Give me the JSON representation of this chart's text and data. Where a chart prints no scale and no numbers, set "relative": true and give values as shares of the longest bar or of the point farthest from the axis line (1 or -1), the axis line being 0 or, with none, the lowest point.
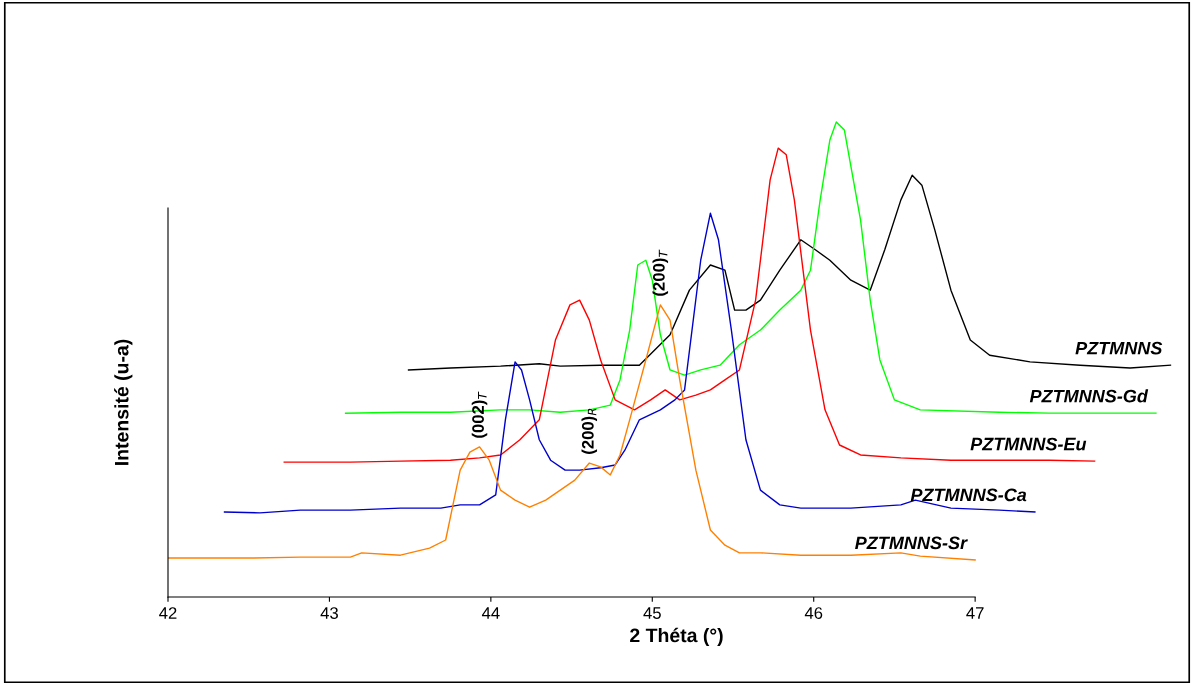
{
  "chart_data": {
    "type": "line",
    "relative": true,
    "xlabel": "2 Théta (°)",
    "ylabel": "Intensité (u-a)",
    "xlim": [
      42,
      48.3
    ],
    "xticks": [
      42,
      43,
      44,
      45,
      46,
      47
    ],
    "grid": false,
    "marker": "none",
    "line_style": "solid",
    "series": [
      {
        "name": "PZTMNNS",
        "color": "#000000",
        "x": [
          43.49,
          43.75,
          44.06,
          44.3,
          44.43,
          44.68,
          44.92,
          45.11,
          45.23,
          45.36,
          45.45,
          45.51,
          45.58,
          45.67,
          45.79,
          45.92,
          46.01,
          46.1,
          46.23,
          46.35,
          46.44,
          46.54,
          46.61,
          46.67,
          46.75,
          46.85,
          46.97,
          47.09,
          47.34,
          47.65,
          47.96,
          48.21
        ],
        "values": [
          0.478,
          0.482,
          0.486,
          0.491,
          0.486,
          0.488,
          0.488,
          0.552,
          0.646,
          0.699,
          0.688,
          0.604,
          0.604,
          0.625,
          0.688,
          0.752,
          0.731,
          0.709,
          0.667,
          0.646,
          0.731,
          0.836,
          0.888,
          0.867,
          0.773,
          0.646,
          0.541,
          0.509,
          0.495,
          0.488,
          0.482,
          0.488
        ]
      },
      {
        "name": "PZTMNNS-Gd",
        "color": "#00ff00",
        "x": [
          43.1,
          43.44,
          43.75,
          44.06,
          44.24,
          44.43,
          44.61,
          44.74,
          44.8,
          44.86,
          44.91,
          44.96,
          45.0,
          45.05,
          45.11,
          45.2,
          45.3,
          45.42,
          45.54,
          45.67,
          45.79,
          45.92,
          45.98,
          46.04,
          46.1,
          46.14,
          46.19,
          46.29,
          46.35,
          46.41,
          46.5,
          46.66,
          47.15,
          47.46,
          47.77,
          48.12
        ],
        "values": [
          0.387,
          0.389,
          0.389,
          0.394,
          0.394,
          0.389,
          0.394,
          0.404,
          0.457,
          0.562,
          0.699,
          0.709,
          0.667,
          0.552,
          0.478,
          0.467,
          0.478,
          0.488,
          0.531,
          0.562,
          0.604,
          0.646,
          0.688,
          0.836,
          0.962,
          1,
          0.983,
          0.794,
          0.625,
          0.499,
          0.415,
          0.394,
          0.389,
          0.387,
          0.387,
          0.387
        ]
      },
      {
        "name": "PZTMNNS-Eu",
        "color": "#ff0000",
        "x": [
          42.72,
          43.13,
          43.44,
          43.75,
          43.93,
          44.06,
          44.18,
          44.3,
          44.4,
          44.49,
          44.55,
          44.61,
          44.68,
          44.77,
          44.89,
          44.99,
          45.08,
          45.17,
          45.27,
          45.36,
          45.45,
          45.54,
          45.64,
          45.73,
          45.78,
          45.83,
          45.88,
          45.98,
          46.07,
          46.16,
          46.29,
          46.54,
          46.85,
          47.15,
          47.46,
          47.74
        ],
        "values": [
          0.284,
          0.284,
          0.286,
          0.288,
          0.293,
          0.299,
          0.331,
          0.373,
          0.541,
          0.615,
          0.625,
          0.583,
          0.499,
          0.415,
          0.394,
          0.415,
          0.436,
          0.415,
          0.425,
          0.436,
          0.457,
          0.478,
          0.625,
          0.878,
          0.945,
          0.931,
          0.836,
          0.562,
          0.394,
          0.32,
          0.299,
          0.293,
          0.288,
          0.288,
          0.288,
          0.286
        ]
      },
      {
        "name": "PZTMNNS-Ca",
        "color": "#0000cc",
        "x": [
          42.35,
          42.57,
          42.82,
          43.13,
          43.44,
          43.69,
          43.81,
          43.93,
          44.03,
          44.09,
          44.15,
          44.19,
          44.24,
          44.3,
          44.37,
          44.46,
          44.55,
          44.68,
          44.77,
          44.83,
          44.92,
          45.05,
          45.14,
          45.2,
          45.3,
          45.36,
          45.41,
          45.49,
          45.58,
          45.67,
          45.79,
          45.92,
          46.23,
          46.54,
          46.63,
          46.85,
          47.15,
          47.37
        ],
        "values": [
          0.179,
          0.177,
          0.183,
          0.183,
          0.187,
          0.187,
          0.194,
          0.194,
          0.215,
          0.373,
          0.495,
          0.478,
          0.415,
          0.331,
          0.288,
          0.267,
          0.267,
          0.272,
          0.278,
          0.309,
          0.373,
          0.394,
          0.415,
          0.436,
          0.709,
          0.808,
          0.752,
          0.562,
          0.331,
          0.225,
          0.194,
          0.187,
          0.187,
          0.194,
          0.204,
          0.187,
          0.183,
          0.179
        ]
      },
      {
        "name": "PZTMNNS-Sr",
        "color": "#ff8000",
        "x": [
          42.0,
          42.51,
          42.82,
          43.13,
          43.2,
          43.44,
          43.62,
          43.72,
          43.81,
          43.87,
          43.93,
          43.99,
          44.06,
          44.15,
          44.24,
          44.34,
          44.43,
          44.52,
          44.61,
          44.68,
          44.74,
          44.8,
          44.86,
          44.96,
          45.05,
          45.11,
          45.17,
          45.27,
          45.36,
          45.45,
          45.54,
          45.67,
          45.92,
          46.23,
          46.54,
          46.66,
          47.0
        ],
        "values": [
          0.082,
          0.082,
          0.084,
          0.084,
          0.093,
          0.088,
          0.103,
          0.12,
          0.267,
          0.305,
          0.316,
          0.288,
          0.225,
          0.204,
          0.189,
          0.204,
          0.225,
          0.246,
          0.282,
          0.274,
          0.257,
          0.299,
          0.373,
          0.499,
          0.615,
          0.583,
          0.457,
          0.267,
          0.141,
          0.109,
          0.093,
          0.093,
          0.088,
          0.088,
          0.093,
          0.086,
          0.078
        ]
      }
    ],
    "annotations": [
      {
        "text": "(002)$_{T}$",
        "x": 43.93,
        "y": 0.316
      },
      {
        "text": "(200)$_{R}$",
        "x": 44.61,
        "y": 0.282
      },
      {
        "text": "(200)$_{T}$",
        "x": 45.05,
        "y": 0.615
      }
    ]
  }
}
